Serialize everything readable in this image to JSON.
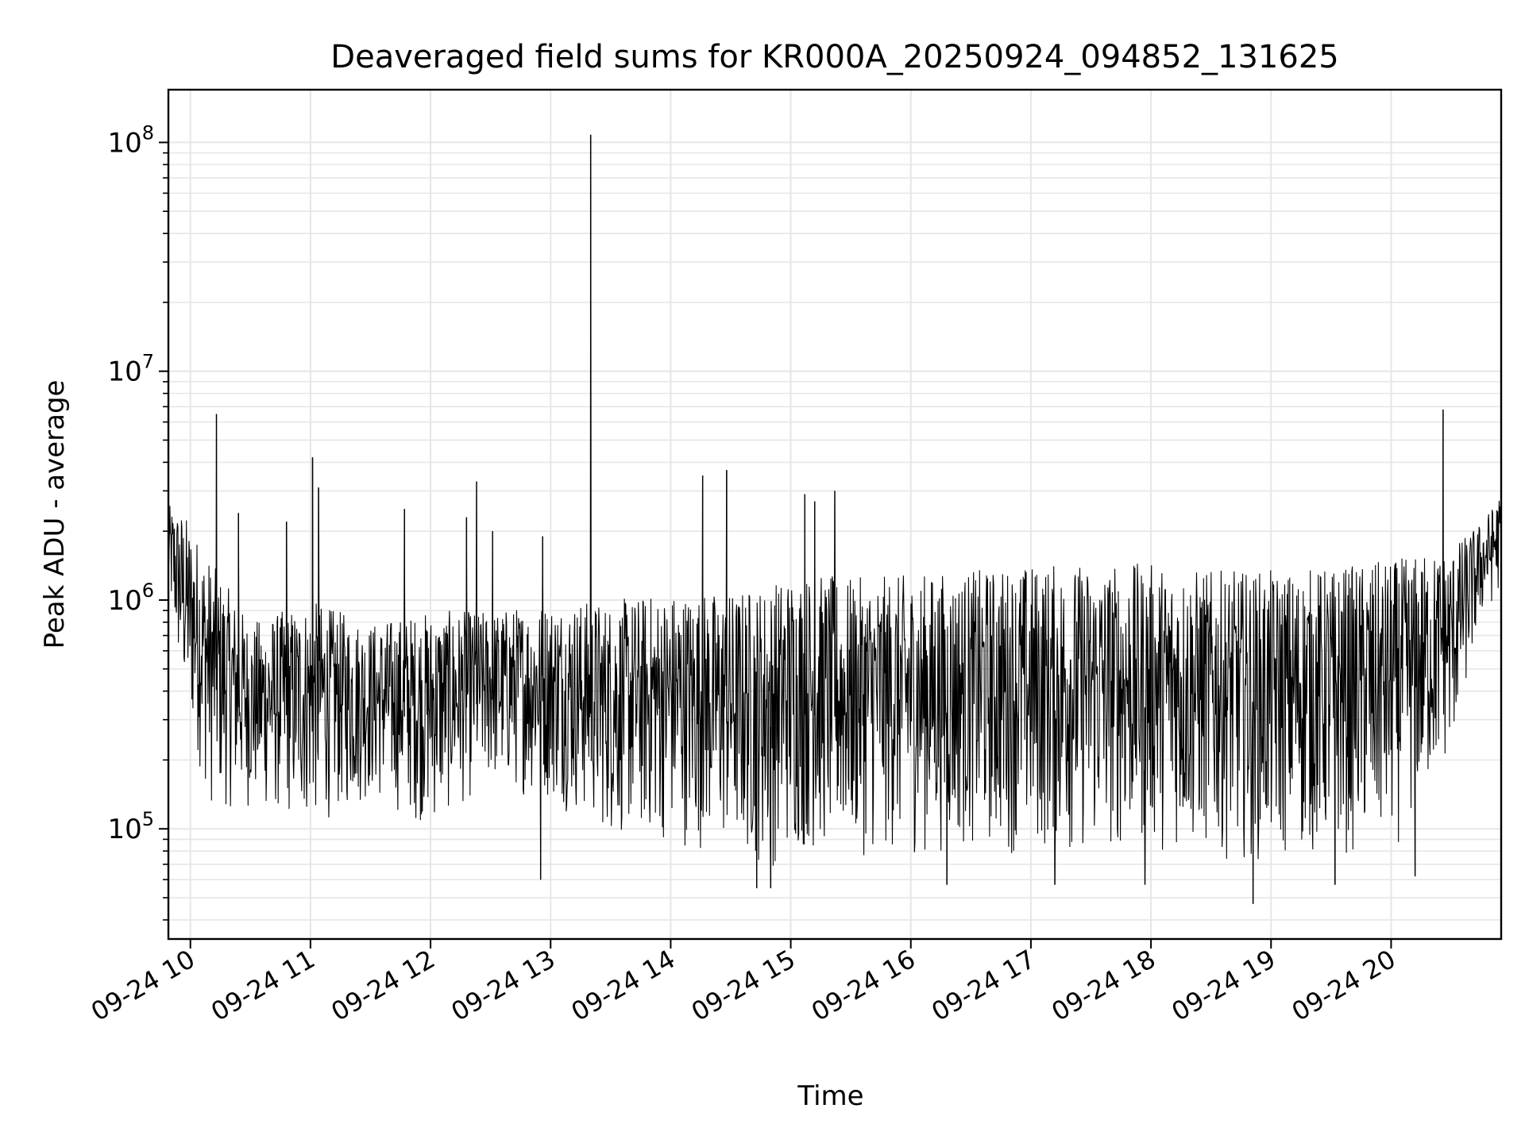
{
  "chart_data": {
    "type": "line",
    "title": "Deaveraged field sums for KR000A_20250924_094852_131625",
    "xlabel": "Time",
    "ylabel": "Peak ADU - average",
    "yscale": "log",
    "ylim": [
      33000,
      170000000
    ],
    "xlim": [
      "2025-09-24 09:49",
      "2025-09-24 20:55"
    ],
    "grid": true,
    "line_color": "#000000",
    "grid_color": "#e6e6e6",
    "x_ticks": [
      {
        "t": "2025-09-24 10:00",
        "label": "09-24 10"
      },
      {
        "t": "2025-09-24 11:00",
        "label": "09-24 11"
      },
      {
        "t": "2025-09-24 12:00",
        "label": "09-24 12"
      },
      {
        "t": "2025-09-24 13:00",
        "label": "09-24 13"
      },
      {
        "t": "2025-09-24 14:00",
        "label": "09-24 14"
      },
      {
        "t": "2025-09-24 15:00",
        "label": "09-24 15"
      },
      {
        "t": "2025-09-24 16:00",
        "label": "09-24 16"
      },
      {
        "t": "2025-09-24 17:00",
        "label": "09-24 17"
      },
      {
        "t": "2025-09-24 18:00",
        "label": "09-24 18"
      },
      {
        "t": "2025-09-24 19:00",
        "label": "09-24 19"
      },
      {
        "t": "2025-09-24 20:00",
        "label": "09-24 20"
      }
    ],
    "y_ticks": [
      {
        "v": 100000,
        "base": "10",
        "exp": "5"
      },
      {
        "v": 1000000,
        "base": "10",
        "exp": "6"
      },
      {
        "v": 10000000,
        "base": "10",
        "exp": "7"
      },
      {
        "v": 100000000,
        "base": "10",
        "exp": "8"
      }
    ],
    "series": [
      {
        "approximate": true,
        "band": [
          {
            "t": "2025-09-24 09:49",
            "low": 1000000,
            "high": 2600000
          },
          {
            "t": "2025-09-24 09:56",
            "low": 350000,
            "high": 2500000
          },
          {
            "t": "2025-09-24 10:10",
            "low": 120000,
            "high": 1500000
          },
          {
            "t": "2025-09-24 10:30",
            "low": 120000,
            "high": 800000
          },
          {
            "t": "2025-09-24 11:00",
            "low": 100000,
            "high": 1000000
          },
          {
            "t": "2025-09-24 11:30",
            "low": 130000,
            "high": 800000
          },
          {
            "t": "2025-09-24 12:00",
            "low": 100000,
            "high": 900000
          },
          {
            "t": "2025-09-24 12:30",
            "low": 150000,
            "high": 900000
          },
          {
            "t": "2025-09-24 13:00",
            "low": 130000,
            "high": 1000000
          },
          {
            "t": "2025-09-24 13:30",
            "low": 90000,
            "high": 1000000
          },
          {
            "t": "2025-09-24 14:00",
            "low": 85000,
            "high": 1100000
          },
          {
            "t": "2025-09-24 14:30",
            "low": 75000,
            "high": 1100000
          },
          {
            "t": "2025-09-24 14:50",
            "low": 65000,
            "high": 1200000
          },
          {
            "t": "2025-09-24 15:00",
            "low": 75000,
            "high": 1350000
          },
          {
            "t": "2025-09-24 15:30",
            "low": 75000,
            "high": 1250000
          },
          {
            "t": "2025-09-24 16:00",
            "low": 75000,
            "high": 1300000
          },
          {
            "t": "2025-09-24 16:30",
            "low": 80000,
            "high": 1350000
          },
          {
            "t": "2025-09-24 17:00",
            "low": 75000,
            "high": 1450000
          },
          {
            "t": "2025-09-24 17:30",
            "low": 75000,
            "high": 1450000
          },
          {
            "t": "2025-09-24 18:00",
            "low": 80000,
            "high": 1450000
          },
          {
            "t": "2025-09-24 18:30",
            "low": 75000,
            "high": 1350000
          },
          {
            "t": "2025-09-24 19:00",
            "low": 70000,
            "high": 1350000
          },
          {
            "t": "2025-09-24 19:30",
            "low": 75000,
            "high": 1400000
          },
          {
            "t": "2025-09-24 20:00",
            "low": 75000,
            "high": 1500000
          },
          {
            "t": "2025-09-24 20:30",
            "low": 200000,
            "high": 1700000
          },
          {
            "t": "2025-09-24 20:45",
            "low": 800000,
            "high": 2200000
          },
          {
            "t": "2025-09-24 20:55",
            "low": 1100000,
            "high": 2900000
          }
        ],
        "spikes": [
          {
            "t": "2025-09-24 10:13",
            "v": 6500000
          },
          {
            "t": "2025-09-24 10:24",
            "v": 2400000
          },
          {
            "t": "2025-09-24 10:48",
            "v": 2200000
          },
          {
            "t": "2025-09-24 11:01",
            "v": 4200000
          },
          {
            "t": "2025-09-24 11:04",
            "v": 3100000
          },
          {
            "t": "2025-09-24 11:47",
            "v": 2500000
          },
          {
            "t": "2025-09-24 12:18",
            "v": 2300000
          },
          {
            "t": "2025-09-24 12:23",
            "v": 3300000
          },
          {
            "t": "2025-09-24 12:31",
            "v": 2000000
          },
          {
            "t": "2025-09-24 12:56",
            "v": 1900000
          },
          {
            "t": "2025-09-24 13:20",
            "v": 108000000
          },
          {
            "t": "2025-09-24 14:16",
            "v": 3500000
          },
          {
            "t": "2025-09-24 14:28",
            "v": 3700000
          },
          {
            "t": "2025-09-24 15:07",
            "v": 2900000
          },
          {
            "t": "2025-09-24 15:12",
            "v": 2700000
          },
          {
            "t": "2025-09-24 15:22",
            "v": 3000000
          },
          {
            "t": "2025-09-24 20:26",
            "v": 6800000
          }
        ],
        "dips": [
          {
            "t": "2025-09-24 12:55",
            "v": 60000
          },
          {
            "t": "2025-09-24 14:50",
            "v": 55000
          },
          {
            "t": "2025-09-24 14:43",
            "v": 55000
          },
          {
            "t": "2025-09-24 16:18",
            "v": 57000
          },
          {
            "t": "2025-09-24 17:12",
            "v": 57000
          },
          {
            "t": "2025-09-24 17:57",
            "v": 57000
          },
          {
            "t": "2025-09-24 18:51",
            "v": 47000
          },
          {
            "t": "2025-09-24 19:32",
            "v": 57000
          },
          {
            "t": "2025-09-24 20:12",
            "v": 62000
          }
        ]
      }
    ]
  }
}
